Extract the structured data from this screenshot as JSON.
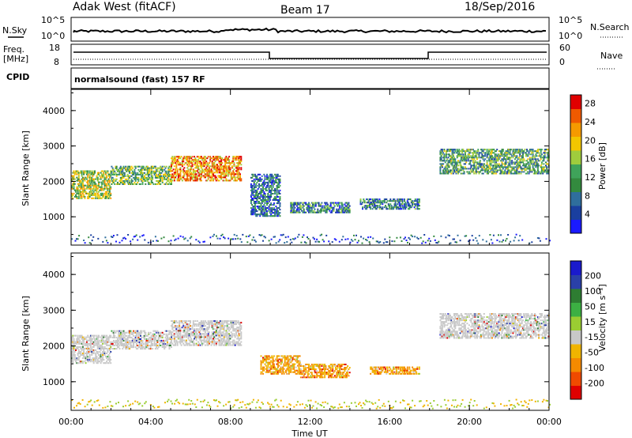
{
  "header": {
    "station": "Adak West (fitACF)",
    "beam": "Beam 17",
    "date": "18/Sep/2016"
  },
  "top_panels": {
    "nsky_label": "N.Sky",
    "nsearch_label": "N.Search",
    "nsky_ticks": [
      "10^5",
      "10^0"
    ],
    "freq_label_1": "Freq.",
    "freq_label_2": "[MHz]",
    "freq_ticks": [
      "18",
      "8"
    ],
    "nave_label": "Nave",
    "nave_ticks": [
      "60",
      "0"
    ],
    "cpid_label": "CPID",
    "cpid_text": "normalsound (fast) 157 RF"
  },
  "colors": {
    "power": [
      "#1a1aff",
      "#1a3f9f",
      "#2f6e9c",
      "#338a3e",
      "#3fa35a",
      "#9fcc3d",
      "#f2c600",
      "#f59a00",
      "#ef5a00",
      "#e00000"
    ],
    "velocity": [
      "#e00000",
      "#f04a00",
      "#f58a00",
      "#f0b400",
      "#c8c8c8",
      "#9acd32",
      "#3cb043",
      "#2e7d32",
      "#2a40a8",
      "#1a1acc"
    ]
  },
  "chart_data": [
    {
      "type": "heatmap",
      "title": "",
      "xlabel": "Time UT",
      "ylabel": "Slant Range [km]",
      "x_ticks": [
        "00:00",
        "04:00",
        "08:00",
        "12:00",
        "16:00",
        "20:00",
        "00:00"
      ],
      "y_ticks": [
        "1000",
        "2000",
        "3000",
        "4000"
      ],
      "ylim": [
        200,
        4600
      ],
      "xlim_hours": [
        0,
        24
      ],
      "colorbar_label": "Power [dB]",
      "colorbar_ticks": [
        "4",
        "8",
        "12",
        "16",
        "20",
        "24",
        "28"
      ],
      "scatter_regions": [
        {
          "t0": 0.0,
          "t1": 2.0,
          "r0": 1500,
          "r1": 2300,
          "level": 0.55
        },
        {
          "t0": 2.0,
          "t1": 5.0,
          "r0": 1900,
          "r1": 2400,
          "level": 0.45
        },
        {
          "t0": 5.0,
          "t1": 8.5,
          "r0": 2000,
          "r1": 2700,
          "level": 0.75
        },
        {
          "t0": 9.0,
          "t1": 10.5,
          "r0": 1000,
          "r1": 2200,
          "level": 0.25
        },
        {
          "t0": 11.0,
          "t1": 14.0,
          "r0": 1100,
          "r1": 1400,
          "level": 0.3
        },
        {
          "t0": 14.5,
          "t1": 17.5,
          "r0": 1200,
          "r1": 1500,
          "level": 0.3
        },
        {
          "t0": 18.5,
          "t1": 24.0,
          "r0": 2200,
          "r1": 2900,
          "level": 0.4
        }
      ]
    },
    {
      "type": "heatmap",
      "title": "",
      "xlabel": "Time UT",
      "ylabel": "Slant Range [km]",
      "x_ticks": [
        "00:00",
        "04:00",
        "08:00",
        "12:00",
        "16:00",
        "20:00",
        "00:00"
      ],
      "y_ticks": [
        "1000",
        "2000",
        "3000",
        "4000"
      ],
      "ylim": [
        200,
        4600
      ],
      "xlim_hours": [
        0,
        24
      ],
      "colorbar_label": "Velocity [m s⁻¹]",
      "colorbar_ticks": [
        "-200",
        "-100",
        "-50",
        "-15",
        "15",
        "50",
        "100",
        "200"
      ],
      "scatter_regions": [
        {
          "t0": 0.0,
          "t1": 2.0,
          "r0": 1500,
          "r1": 2300,
          "level": 0.5
        },
        {
          "t0": 2.0,
          "t1": 5.0,
          "r0": 1900,
          "r1": 2400,
          "level": 0.5
        },
        {
          "t0": 5.0,
          "t1": 8.5,
          "r0": 2000,
          "r1": 2700,
          "level": 0.5
        },
        {
          "t0": 9.5,
          "t1": 11.5,
          "r0": 1200,
          "r1": 1700,
          "level": 0.3
        },
        {
          "t0": 11.5,
          "t1": 14.0,
          "r0": 1100,
          "r1": 1500,
          "level": 0.25
        },
        {
          "t0": 15.0,
          "t1": 17.5,
          "r0": 1200,
          "r1": 1400,
          "level": 0.2
        },
        {
          "t0": 18.5,
          "t1": 24.0,
          "r0": 2200,
          "r1": 2900,
          "level": 0.5
        }
      ]
    }
  ]
}
